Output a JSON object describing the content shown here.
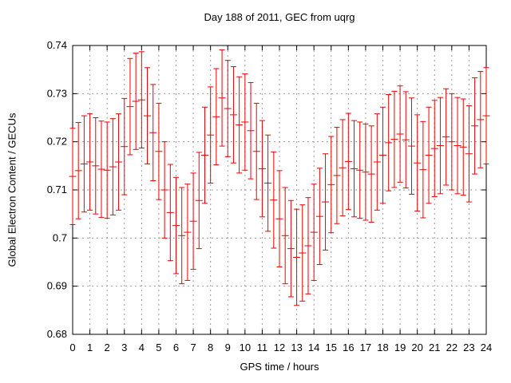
{
  "chart_data": {
    "type": "scatter",
    "style": "yerrorbars",
    "title": "Day 188 of 2011, GEC from uqrg",
    "xlabel": "GPS time / hours",
    "ylabel": "Global Electron Content / GECUs",
    "xlim": [
      0,
      24
    ],
    "ylim": [
      0.68,
      0.74
    ],
    "grid": true,
    "xticks": [
      0,
      1,
      2,
      3,
      4,
      5,
      6,
      7,
      8,
      9,
      10,
      11,
      12,
      13,
      14,
      15,
      16,
      17,
      18,
      19,
      20,
      21,
      22,
      23,
      24
    ],
    "xtick_labels": [
      "0",
      "1",
      "2",
      "3",
      "4",
      "5",
      "6",
      "7",
      "8",
      "9",
      "10",
      "11",
      "12",
      "13",
      "14",
      "15",
      "16",
      "17",
      "18",
      "19",
      "20",
      "21",
      "22",
      "23",
      "24"
    ],
    "yticks": [
      0.68,
      0.69,
      0.7,
      0.71,
      0.72,
      0.73,
      0.74
    ],
    "ytick_labels": [
      "0.68",
      "0.69",
      "0.7",
      "0.71",
      "0.72",
      "0.73",
      "0.74"
    ],
    "yerr": 0.01,
    "x": [
      0,
      0.333,
      0.667,
      1,
      1.333,
      1.667,
      2,
      2.333,
      2.667,
      3,
      3.333,
      3.667,
      4,
      4.333,
      4.667,
      5,
      5.333,
      5.667,
      6,
      6.333,
      6.667,
      7,
      7.333,
      7.667,
      8,
      8.333,
      8.667,
      9,
      9.333,
      9.667,
      10,
      10.333,
      10.667,
      11,
      11.333,
      11.667,
      12,
      12.333,
      12.667,
      13,
      13.333,
      13.667,
      14,
      14.333,
      14.667,
      15,
      15.333,
      15.667,
      16,
      16.333,
      16.667,
      17,
      17.333,
      17.667,
      18,
      18.333,
      18.667,
      19,
      19.333,
      19.667,
      20,
      20.333,
      20.667,
      21,
      21.333,
      21.667,
      22,
      22.333,
      22.667,
      23,
      23.333,
      23.667,
      24
    ],
    "y": [
      0.7128,
      0.714,
      0.7154,
      0.7158,
      0.715,
      0.7143,
      0.7141,
      0.7148,
      0.7158,
      0.719,
      0.7273,
      0.7284,
      0.7287,
      0.7254,
      0.7219,
      0.718,
      0.71,
      0.7053,
      0.7026,
      0.7005,
      0.7012,
      0.7035,
      0.7078,
      0.7172,
      0.7214,
      0.7252,
      0.7291,
      0.7269,
      0.7256,
      0.7235,
      0.7241,
      0.7223,
      0.718,
      0.7144,
      0.7114,
      0.7079,
      0.704,
      0.7005,
      0.6978,
      0.696,
      0.6969,
      0.6984,
      0.7012,
      0.7045,
      0.7075,
      0.7111,
      0.713,
      0.7146,
      0.7159,
      0.7144,
      0.7141,
      0.7137,
      0.7133,
      0.7158,
      0.7172,
      0.7198,
      0.7205,
      0.7216,
      0.7204,
      0.7191,
      0.7156,
      0.7142,
      0.7172,
      0.7186,
      0.7192,
      0.721,
      0.72,
      0.7192,
      0.7189,
      0.7175,
      0.7233,
      0.7246,
      0.7254
    ],
    "colors": {
      "series": "#f00000",
      "grid": "#9c9c9c",
      "axis": "#000000",
      "background": "#ffffff"
    }
  }
}
